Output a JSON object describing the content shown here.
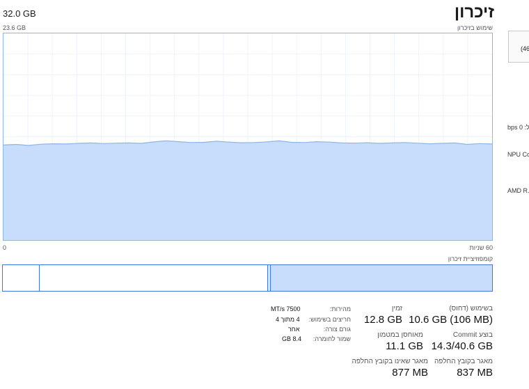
{
  "header": {
    "title": "זיכרון",
    "total": "32.0 GB",
    "usage_label": "שימוש בזיכרון",
    "graph_max": "23.6 GB"
  },
  "graph": {
    "axis_left": "0",
    "axis_right": "60 שניות",
    "usage_fraction_of_max": 0.46
  },
  "composition": {
    "label": "קומפוזיציית זיכרון"
  },
  "stats": {
    "in_use": {
      "label": "בשימוש (דחוס)",
      "value": "10.6 GB (106 MB)"
    },
    "available": {
      "label": "זמין",
      "value": "12.8 GB"
    },
    "committed": {
      "label": "בוצע Commit",
      "value": "14.3/40.6 GB"
    },
    "cached": {
      "label": "מאוחסן במטמון",
      "value": "11.1 GB"
    },
    "paged_pool": {
      "label": "מאגר בקובץ החלפה",
      "value": "837 MB"
    },
    "non_paged_pool": {
      "label": "מאגר שאינו בקובץ החלפה",
      "value": "877 MB"
    }
  },
  "details": {
    "speed": {
      "label": "מהירות:",
      "value": "7500 MT/s"
    },
    "slots": {
      "label": "חריצים בשימוש:",
      "value": "4 מתוך 4"
    },
    "form_factor": {
      "label": "גורם צורה:",
      "value": "אחר"
    },
    "hardware_reserved": {
      "label": "שמור לחומרה:",
      "value": "8.4 GB"
    }
  },
  "sidebar_partial": {
    "box_text": "(46",
    "net_text": "bps 0 :ל",
    "npu_text": "NPU Co",
    "gpu_text": "AMD R..."
  },
  "colors": {
    "graph_fill": "#c8dcfb",
    "graph_line": "#8fb4e6",
    "accent": "#3c78d8"
  }
}
